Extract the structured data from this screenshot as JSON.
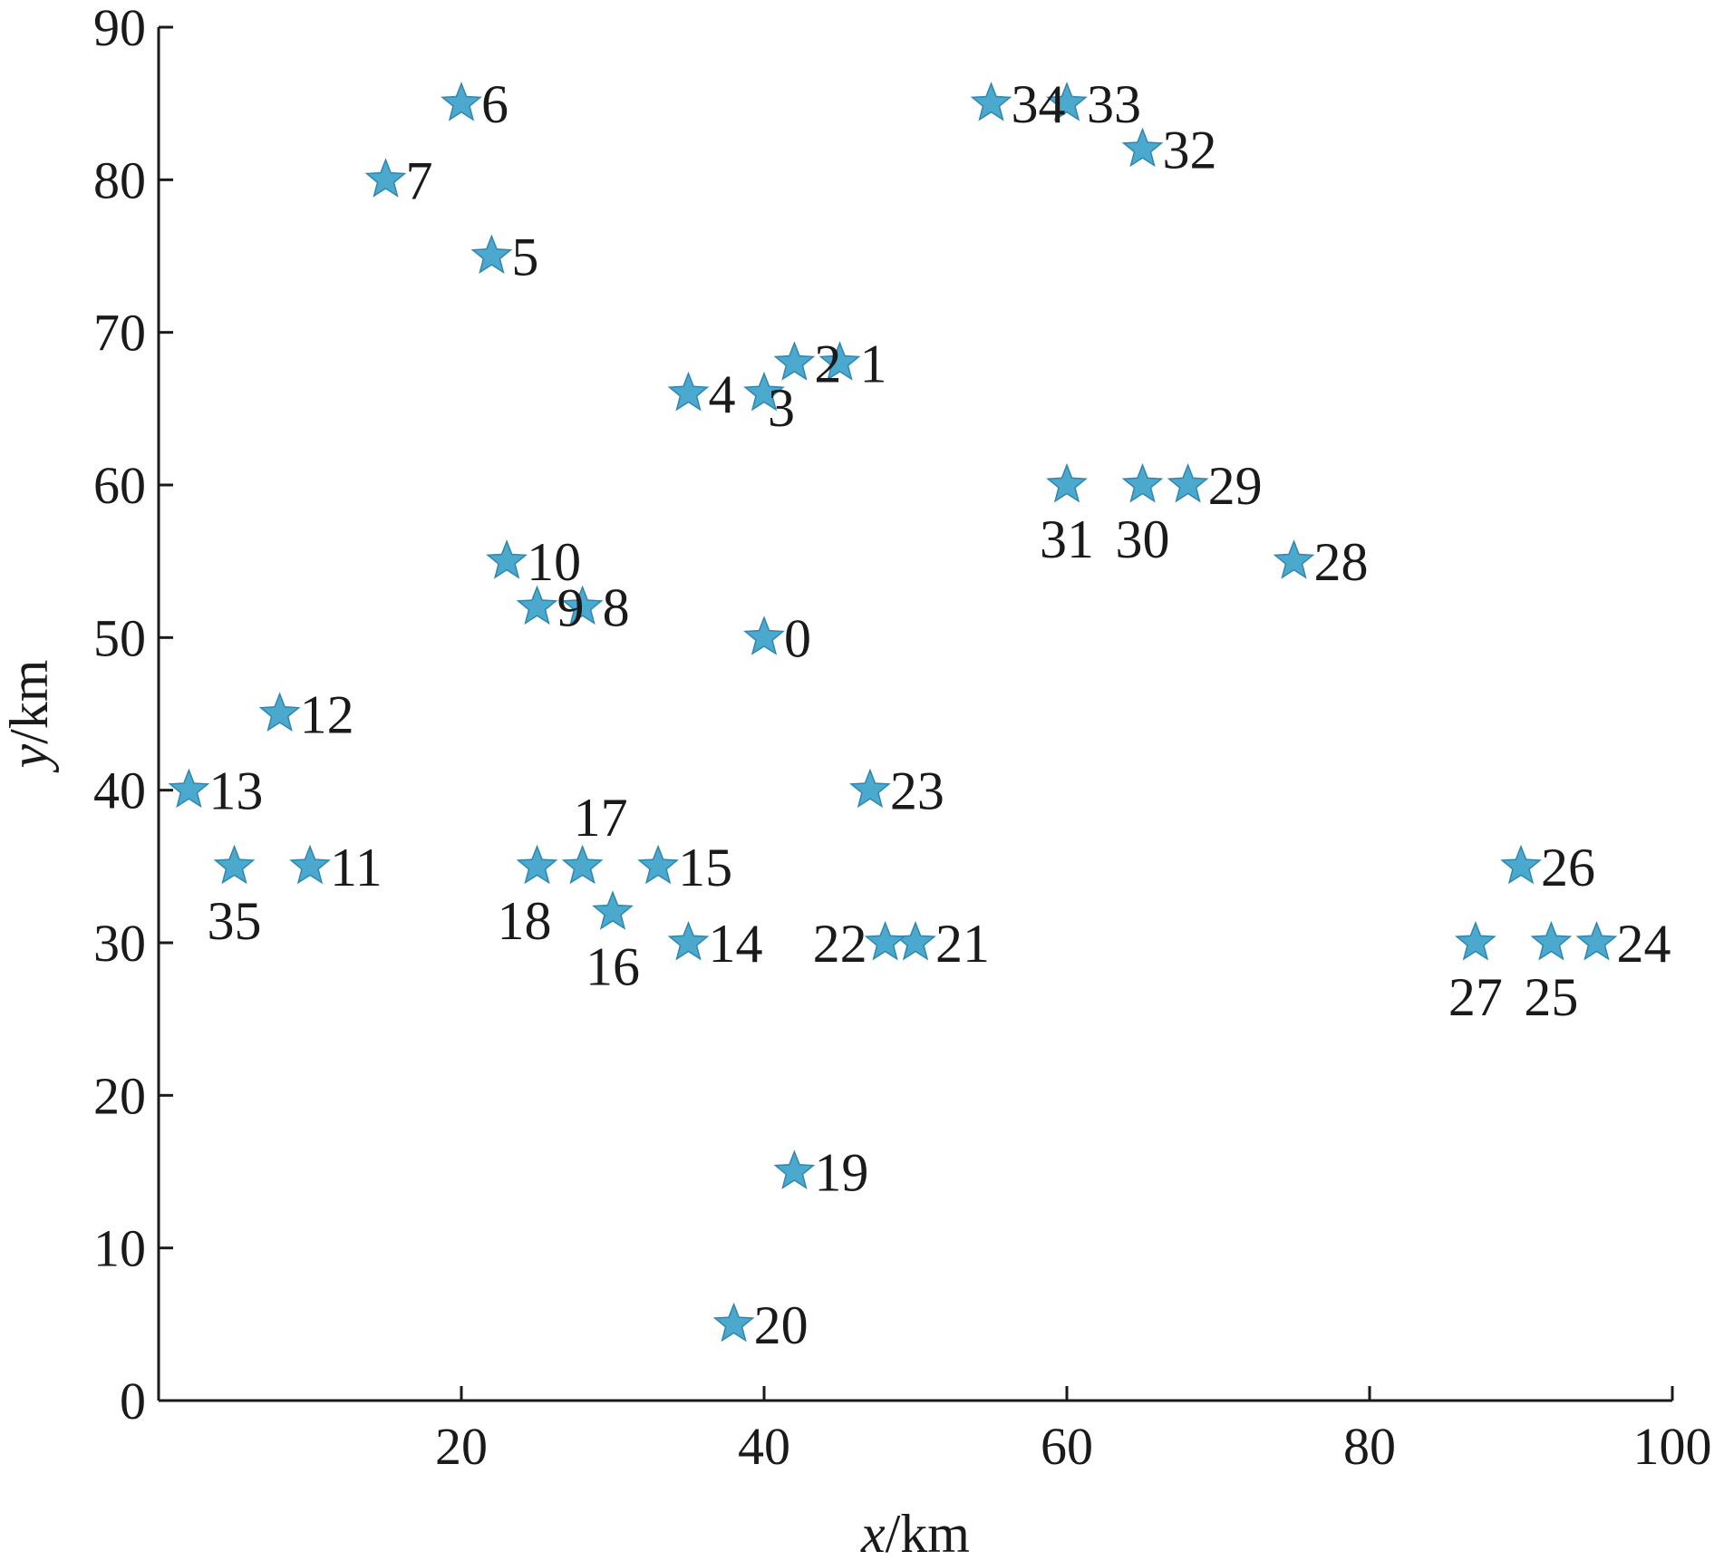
{
  "chart_data": {
    "type": "scatter",
    "xlabel": {
      "var": "x",
      "unit": "/km"
    },
    "ylabel": {
      "var": "y",
      "unit": "/km"
    },
    "xlim": [
      0,
      100
    ],
    "ylim": [
      0,
      90
    ],
    "xticks": [
      20,
      40,
      60,
      80,
      100
    ],
    "yticks": [
      0,
      10,
      20,
      30,
      40,
      50,
      60,
      70,
      80,
      90
    ],
    "grid": false,
    "legend": "none",
    "marker": "star",
    "marker_color": "#4aa9cc",
    "points": [
      {
        "label": "0",
        "x": 40,
        "y": 50,
        "label_pos": "right"
      },
      {
        "label": "1",
        "x": 45,
        "y": 68,
        "label_pos": "right"
      },
      {
        "label": "2",
        "x": 42,
        "y": 68,
        "label_pos": "right"
      },
      {
        "label": "3",
        "x": 40,
        "y": 66,
        "label_pos": "below-right"
      },
      {
        "label": "4",
        "x": 35,
        "y": 66,
        "label_pos": "right"
      },
      {
        "label": "5",
        "x": 22,
        "y": 75,
        "label_pos": "right"
      },
      {
        "label": "6",
        "x": 20,
        "y": 85,
        "label_pos": "right"
      },
      {
        "label": "7",
        "x": 15,
        "y": 80,
        "label_pos": "right"
      },
      {
        "label": "8",
        "x": 28,
        "y": 52,
        "label_pos": "right"
      },
      {
        "label": "9",
        "x": 25,
        "y": 52,
        "label_pos": "right"
      },
      {
        "label": "10",
        "x": 23,
        "y": 55,
        "label_pos": "right"
      },
      {
        "label": "11",
        "x": 10,
        "y": 35,
        "label_pos": "right"
      },
      {
        "label": "12",
        "x": 8,
        "y": 45,
        "label_pos": "right"
      },
      {
        "label": "13",
        "x": 2,
        "y": 40,
        "label_pos": "right"
      },
      {
        "label": "14",
        "x": 35,
        "y": 30,
        "label_pos": "right"
      },
      {
        "label": "15",
        "x": 33,
        "y": 35,
        "label_pos": "right"
      },
      {
        "label": "16",
        "x": 30,
        "y": 32,
        "label_pos": "below"
      },
      {
        "label": "17",
        "x": 28,
        "y": 35,
        "label_pos": "above"
      },
      {
        "label": "18",
        "x": 25,
        "y": 35,
        "label_pos": "below-left"
      },
      {
        "label": "19",
        "x": 42,
        "y": 15,
        "label_pos": "right"
      },
      {
        "label": "20",
        "x": 38,
        "y": 5,
        "label_pos": "right"
      },
      {
        "label": "21",
        "x": 50,
        "y": 30,
        "label_pos": "right"
      },
      {
        "label": "22",
        "x": 48,
        "y": 30,
        "label_pos": "left"
      },
      {
        "label": "23",
        "x": 47,
        "y": 40,
        "label_pos": "right"
      },
      {
        "label": "24",
        "x": 95,
        "y": 30,
        "label_pos": "right"
      },
      {
        "label": "25",
        "x": 92,
        "y": 30,
        "label_pos": "below"
      },
      {
        "label": "26",
        "x": 90,
        "y": 35,
        "label_pos": "right"
      },
      {
        "label": "27",
        "x": 87,
        "y": 30,
        "label_pos": "below"
      },
      {
        "label": "28",
        "x": 75,
        "y": 55,
        "label_pos": "right"
      },
      {
        "label": "29",
        "x": 68,
        "y": 60,
        "label_pos": "right"
      },
      {
        "label": "30",
        "x": 65,
        "y": 60,
        "label_pos": "below"
      },
      {
        "label": "31",
        "x": 60,
        "y": 60,
        "label_pos": "below"
      },
      {
        "label": "32",
        "x": 65,
        "y": 82,
        "label_pos": "right"
      },
      {
        "label": "33",
        "x": 60,
        "y": 85,
        "label_pos": "right"
      },
      {
        "label": "34",
        "x": 55,
        "y": 85,
        "label_pos": "right"
      },
      {
        "label": "35",
        "x": 5,
        "y": 35,
        "label_pos": "below"
      }
    ]
  }
}
